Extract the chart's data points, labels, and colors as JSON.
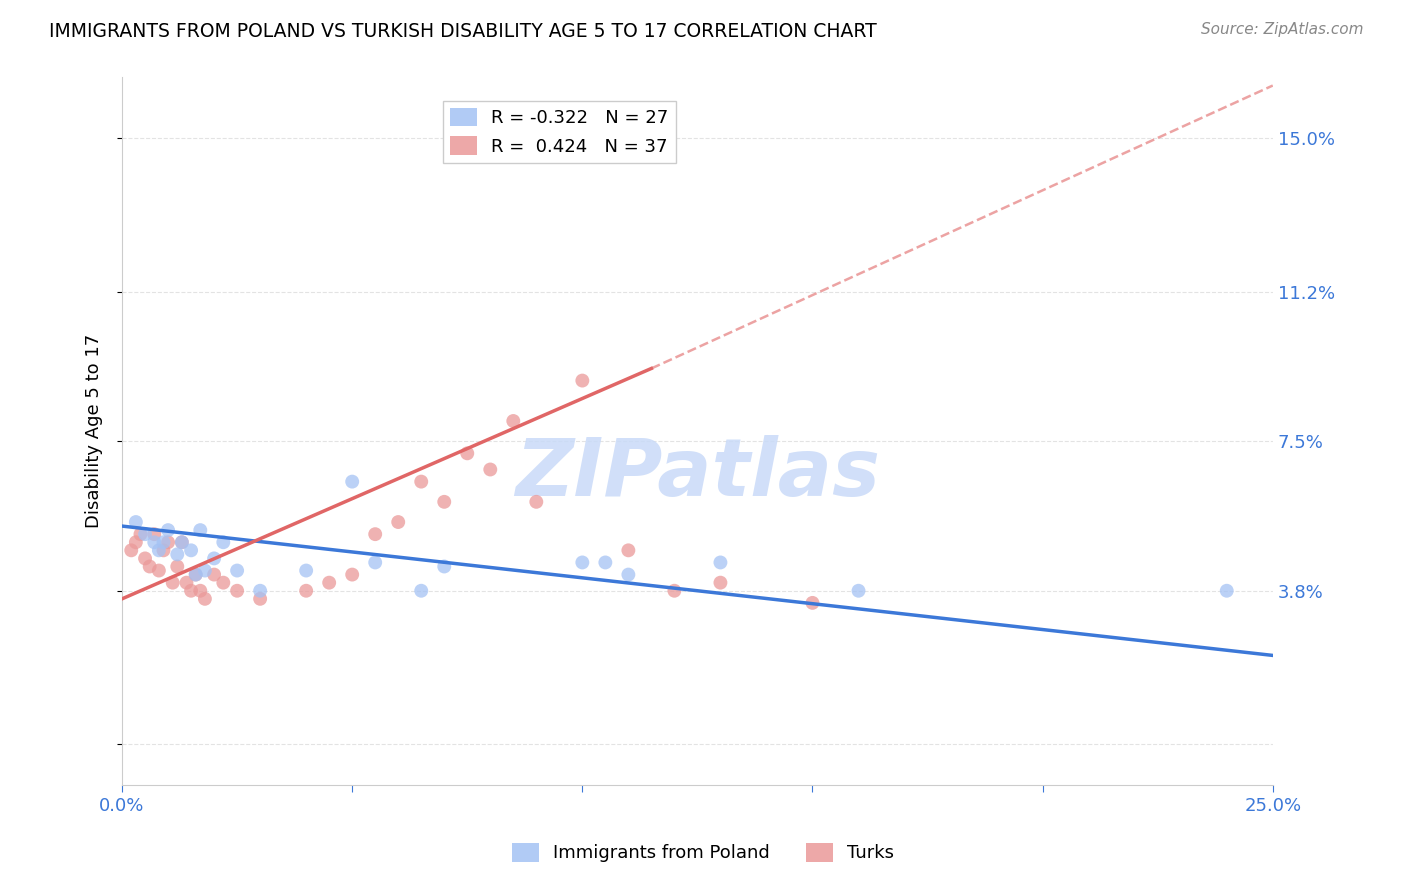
{
  "title": "IMMIGRANTS FROM POLAND VS TURKISH DISABILITY AGE 5 TO 17 CORRELATION CHART",
  "source": "Source: ZipAtlas.com",
  "ylabel_label": "Disability Age 5 to 17",
  "ylabel_ticks": [
    0.0,
    0.038,
    0.075,
    0.112,
    0.15
  ],
  "ylabel_tick_labels": [
    "",
    "3.8%",
    "7.5%",
    "11.2%",
    "15.0%"
  ],
  "xlim": [
    0.0,
    0.25
  ],
  "ylim": [
    -0.01,
    0.165
  ],
  "legend_poland_r": "-0.322",
  "legend_poland_n": "27",
  "legend_turks_r": "0.424",
  "legend_turks_n": "37",
  "poland_color": "#a4c2f4",
  "turks_color": "#ea9999",
  "poland_line_color": "#3c78d8",
  "turks_line_color": "#e06666",
  "dashed_line_color": "#e06666",
  "watermark_color": "#c9daf8",
  "poland_scatter_x": [
    0.003,
    0.005,
    0.007,
    0.008,
    0.009,
    0.01,
    0.012,
    0.013,
    0.015,
    0.016,
    0.017,
    0.018,
    0.02,
    0.022,
    0.025,
    0.03,
    0.04,
    0.05,
    0.055,
    0.065,
    0.07,
    0.1,
    0.105,
    0.11,
    0.13,
    0.16,
    0.24
  ],
  "poland_scatter_y": [
    0.055,
    0.052,
    0.05,
    0.048,
    0.05,
    0.053,
    0.047,
    0.05,
    0.048,
    0.042,
    0.053,
    0.043,
    0.046,
    0.05,
    0.043,
    0.038,
    0.043,
    0.065,
    0.045,
    0.038,
    0.044,
    0.045,
    0.045,
    0.042,
    0.045,
    0.038,
    0.038
  ],
  "turks_scatter_x": [
    0.002,
    0.003,
    0.004,
    0.005,
    0.006,
    0.007,
    0.008,
    0.009,
    0.01,
    0.011,
    0.012,
    0.013,
    0.014,
    0.015,
    0.016,
    0.017,
    0.018,
    0.02,
    0.022,
    0.025,
    0.03,
    0.04,
    0.045,
    0.05,
    0.055,
    0.06,
    0.065,
    0.07,
    0.075,
    0.08,
    0.085,
    0.09,
    0.1,
    0.11,
    0.12,
    0.13,
    0.15
  ],
  "turks_scatter_y": [
    0.048,
    0.05,
    0.052,
    0.046,
    0.044,
    0.052,
    0.043,
    0.048,
    0.05,
    0.04,
    0.044,
    0.05,
    0.04,
    0.038,
    0.042,
    0.038,
    0.036,
    0.042,
    0.04,
    0.038,
    0.036,
    0.038,
    0.04,
    0.042,
    0.052,
    0.055,
    0.065,
    0.06,
    0.072,
    0.068,
    0.08,
    0.06,
    0.09,
    0.048,
    0.038,
    0.04,
    0.035
  ],
  "poland_line_x": [
    0.0,
    0.25
  ],
  "poland_line_y": [
    0.054,
    0.022
  ],
  "turks_line_x": [
    0.0,
    0.115
  ],
  "turks_line_y": [
    0.036,
    0.093
  ],
  "dashed_line_x": [
    0.115,
    0.25
  ],
  "dashed_line_y": [
    0.093,
    0.163
  ],
  "scatter_size": 100,
  "grid_color": "#dddddd",
  "bottom_legend_labels": [
    "Immigrants from Poland",
    "Turks"
  ]
}
